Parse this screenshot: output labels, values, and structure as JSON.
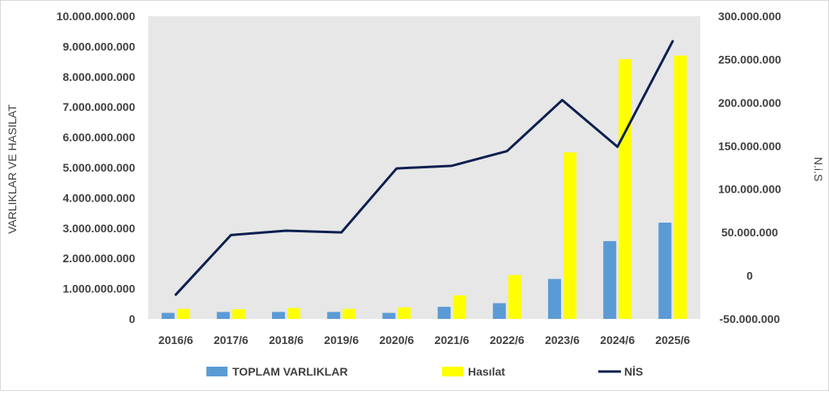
{
  "chart_data": {
    "type": "bar",
    "categories": [
      "2016/6",
      "2017/6",
      "2018/6",
      "2019/6",
      "2020/6",
      "2021/6",
      "2022/6",
      "2023/6",
      "2024/6",
      "2025/6"
    ],
    "y_left": {
      "label": "VARLIKLAR VE HASILAT",
      "ylim": [
        0,
        10000000000
      ],
      "ticks": [
        0,
        1000000000,
        2000000000,
        3000000000,
        4000000000,
        5000000000,
        6000000000,
        7000000000,
        8000000000,
        9000000000,
        10000000000
      ],
      "tick_labels": [
        "0",
        "1.000.000.000",
        "2.000.000.000",
        "3.000.000.000",
        "4.000.000.000",
        "5.000.000.000",
        "6.000.000.000",
        "7.000.000.000",
        "8.000.000.000",
        "9.000.000.000",
        "10.000.000.000"
      ]
    },
    "y_right": {
      "label": "N.i.S",
      "ylim": [
        -50000000,
        300000000
      ],
      "ticks": [
        -50000000,
        0,
        50000000,
        100000000,
        150000000,
        200000000,
        250000000,
        300000000
      ],
      "tick_labels": [
        "-50.000.000",
        "0",
        "50.000.000",
        "100.000.000",
        "150.000.000",
        "200.000.000",
        "250.000.000",
        "300.000.000"
      ]
    },
    "series": [
      {
        "name": "TOPLAM VARLIKLAR",
        "type": "bar",
        "axis": "left",
        "color": "#5b9bd5",
        "values": [
          200000000,
          230000000,
          230000000,
          230000000,
          200000000,
          400000000,
          520000000,
          1320000000,
          2570000000,
          3180000000
        ]
      },
      {
        "name": "Hasılat",
        "type": "bar",
        "axis": "left",
        "color": "#ffff00",
        "values": [
          330000000,
          320000000,
          360000000,
          330000000,
          380000000,
          780000000,
          1450000000,
          5500000000,
          8580000000,
          8700000000
        ]
      },
      {
        "name": "NİS",
        "type": "line",
        "axis": "right",
        "color": "#0b1f4f",
        "values": [
          -22000000,
          47000000,
          52000000,
          50000000,
          124000000,
          127000000,
          144000000,
          203000000,
          149000000,
          271000000
        ]
      }
    ],
    "grid": false,
    "plot_background": "#e7e7e7",
    "legend_position": "bottom"
  }
}
